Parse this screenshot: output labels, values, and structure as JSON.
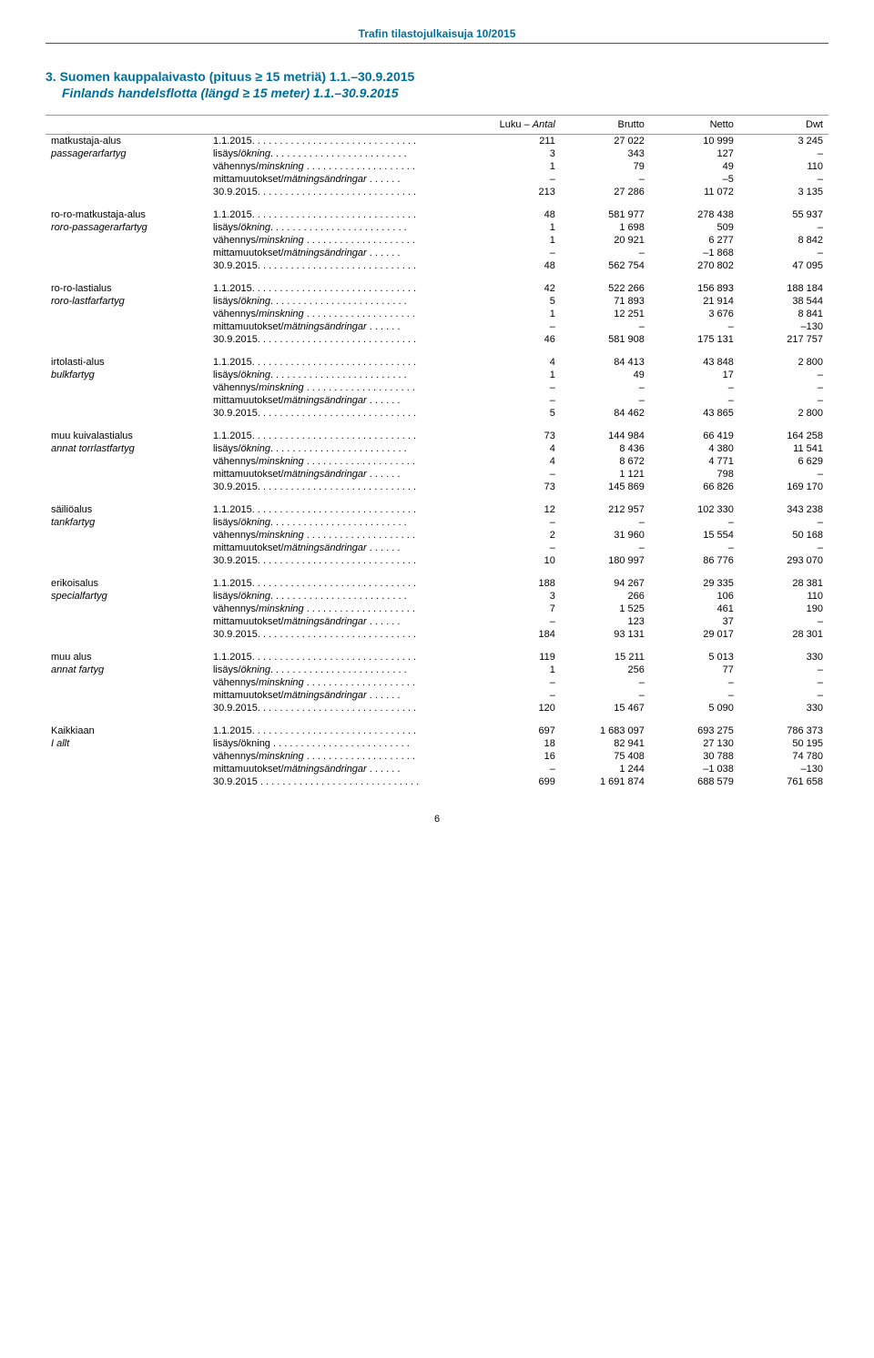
{
  "publication_header": "Trafin tilastojulkaisuja 10/2015",
  "title_line1": "3.  Suomen kauppalaivasto (pituus ≥ 15 metriä) 1.1.–30.9.2015",
  "title_line2": "Finlands handelsflotta (längd ≥ 15 meter) 1.1.–30.9.2015",
  "col_headers": {
    "luku": "Luku – ",
    "luku_ital": "Antal",
    "brutto": "Brutto",
    "netto": "Netto",
    "dwt": "Dwt"
  },
  "row_labels": {
    "start": "1.1.2015.",
    "lisays": "lisäys/",
    "lisays_ital": "ökning",
    "lisays_plain": "lisäys/ökning",
    "vahennys": "vähennys/",
    "vahennys_ital": "minskning",
    "mitta": "mittamuutokset/",
    "mitta_ital": "mätningsändringar",
    "end": "30.9.2015.",
    "end_plain": "30.9.2015"
  },
  "categories": [
    {
      "fi": "matkustaja-alus",
      "sv": "passagerarfartyg",
      "rows": [
        [
          "211",
          "27 022",
          "10 999",
          "3 245"
        ],
        [
          "3",
          "343",
          "127",
          "–"
        ],
        [
          "1",
          "79",
          "49",
          "110"
        ],
        [
          "–",
          "–",
          "–5",
          "–"
        ],
        [
          "213",
          "27 286",
          "11 072",
          "3 135"
        ]
      ]
    },
    {
      "fi": "ro-ro-matkustaja-alus",
      "sv": "roro-passagerarfartyg",
      "rows": [
        [
          "48",
          "581 977",
          "278 438",
          "55 937"
        ],
        [
          "1",
          "1 698",
          "509",
          "–"
        ],
        [
          "1",
          "20 921",
          "6 277",
          "8 842"
        ],
        [
          "–",
          "–",
          "–1 868",
          "–"
        ],
        [
          "48",
          "562 754",
          "270 802",
          "47 095"
        ]
      ]
    },
    {
      "fi": "ro-ro-lastialus",
      "sv": "roro-lastfarfartyg",
      "rows": [
        [
          "42",
          "522 266",
          "156 893",
          "188 184"
        ],
        [
          "5",
          "71 893",
          "21 914",
          "38 544"
        ],
        [
          "1",
          "12 251",
          "3 676",
          "8 841"
        ],
        [
          "–",
          "–",
          "–",
          "–130"
        ],
        [
          "46",
          "581 908",
          "175 131",
          "217 757"
        ]
      ]
    },
    {
      "fi": "irtolasti-alus",
      "sv": "bulkfartyg",
      "rows": [
        [
          "4",
          "84 413",
          "43 848",
          "2 800"
        ],
        [
          "1",
          "49",
          "17",
          "–"
        ],
        [
          "–",
          "–",
          "–",
          "–"
        ],
        [
          "–",
          "–",
          "–",
          "–"
        ],
        [
          "5",
          "84 462",
          "43 865",
          "2 800"
        ]
      ]
    },
    {
      "fi": "muu kuivalastialus",
      "sv": "annat torrlastfartyg",
      "rows": [
        [
          "73",
          "144 984",
          "66 419",
          "164 258"
        ],
        [
          "4",
          "8 436",
          "4 380",
          "11 541"
        ],
        [
          "4",
          "8 672",
          "4 771",
          "6 629"
        ],
        [
          "–",
          "1 121",
          "798",
          "–"
        ],
        [
          "73",
          "145 869",
          "66 826",
          "169 170"
        ]
      ]
    },
    {
      "fi": "säiliöalus",
      "sv": "tankfartyg",
      "rows": [
        [
          "12",
          "212 957",
          "102 330",
          "343 238"
        ],
        [
          "–",
          "–",
          "–",
          "–"
        ],
        [
          "2",
          "31 960",
          "15 554",
          "50 168"
        ],
        [
          "–",
          "–",
          "–",
          "–"
        ],
        [
          "10",
          "180 997",
          "86 776",
          "293 070"
        ]
      ]
    },
    {
      "fi": "erikoisalus",
      "sv": "specialfartyg",
      "rows": [
        [
          "188",
          "94 267",
          "29 335",
          "28 381"
        ],
        [
          "3",
          "266",
          "106",
          "110"
        ],
        [
          "7",
          "1 525",
          "461",
          "190"
        ],
        [
          "–",
          "123",
          "37",
          "–"
        ],
        [
          "184",
          "93 131",
          "29 017",
          "28 301"
        ]
      ]
    },
    {
      "fi": "muu alus",
      "sv": "annat fartyg",
      "rows": [
        [
          "119",
          "15 211",
          "5 013",
          "330"
        ],
        [
          "1",
          "256",
          "77",
          "–"
        ],
        [
          "–",
          "–",
          "–",
          "–"
        ],
        [
          "–",
          "–",
          "–",
          "–"
        ],
        [
          "120",
          "15 467",
          "5 090",
          "330"
        ]
      ]
    },
    {
      "fi": "Kaikkiaan",
      "sv": "I allt",
      "plain_okning": true,
      "rows": [
        [
          "697",
          "1 683 097",
          "693 275",
          "786 373"
        ],
        [
          "18",
          "82 941",
          "27 130",
          "50 195"
        ],
        [
          "16",
          "75 408",
          "30 788",
          "74 780"
        ],
        [
          "–",
          "1 244",
          "–1 038",
          "–130"
        ],
        [
          "699",
          "1 691 874",
          "688 579",
          "761 658"
        ]
      ]
    }
  ],
  "page_number": "6"
}
